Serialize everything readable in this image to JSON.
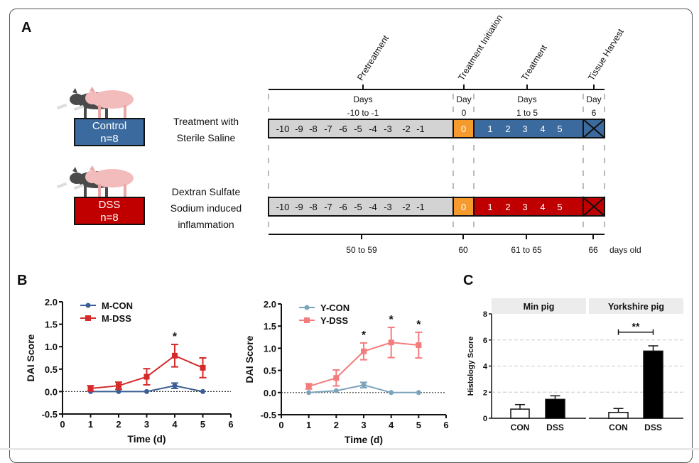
{
  "panels": {
    "a": {
      "label": "A"
    },
    "b": {
      "label": "B"
    },
    "c": {
      "label": "C"
    }
  },
  "groups": [
    {
      "name": "Control",
      "n": "n=8",
      "desc": [
        "Treatment with",
        "Sterile Saline"
      ],
      "color": "#3b6a9f"
    },
    {
      "name": "DSS",
      "n": "n=8",
      "desc": [
        "Dextran Sulfate",
        "Sodium induced",
        "inflammation"
      ],
      "color": "#c00000"
    }
  ],
  "timeline": {
    "phases": [
      "Pretreatment",
      "Treatment Initiation",
      "Treatment",
      "Tissue Harvest"
    ],
    "headers": [
      {
        "title": "Days",
        "range": "-10 to -1"
      },
      {
        "title": "Day",
        "range": "0"
      },
      {
        "title": "Days",
        "range": "1 to 5"
      },
      {
        "title": "Day",
        "range": "6"
      }
    ],
    "pre_days": [
      "-10",
      "-9",
      "-8",
      "-7",
      "-6",
      "-5",
      "-4",
      "-3",
      "-2",
      "-1"
    ],
    "init_day": "0",
    "treat_days": [
      "1",
      "2",
      "3",
      "4",
      "5"
    ],
    "ages": [
      "50 to 59",
      "60",
      "61 to 65",
      "66"
    ],
    "age_unit": "days old",
    "colors": {
      "pre": "#d3d3d3",
      "init": "#f59a2c",
      "harvest_x": "#111111"
    }
  },
  "chart_data": [
    {
      "type": "line",
      "title": "",
      "xlabel": "Time (d)",
      "ylabel": "DAI  Score",
      "xlim": [
        0,
        6
      ],
      "ylim": [
        -0.5,
        2.0
      ],
      "xticks": [
        "0",
        "1",
        "2",
        "3",
        "4",
        "5",
        "6"
      ],
      "yticks": [
        "-0.5",
        "0.0",
        "0.5",
        "1.0",
        "1.5",
        "2.0"
      ],
      "legend": "top-left",
      "reference_line": 0,
      "series": [
        {
          "name": "M-CON",
          "color": "#3b5f94",
          "marker": "circle",
          "x": [
            1,
            2,
            3,
            4,
            5
          ],
          "y": [
            0,
            0,
            0,
            0.13,
            0
          ],
          "err": [
            0,
            0,
            0,
            0.06,
            0
          ]
        },
        {
          "name": "M-DSS",
          "color": "#d42a2a",
          "marker": "square",
          "x": [
            1,
            2,
            3,
            4,
            5
          ],
          "y": [
            0.07,
            0.13,
            0.33,
            0.8,
            0.53
          ],
          "err": [
            0.06,
            0.08,
            0.18,
            0.25,
            0.22
          ]
        }
      ],
      "annotations": [
        {
          "x": 4,
          "text": "*"
        }
      ]
    },
    {
      "type": "line",
      "title": "",
      "xlabel": "Time (d)",
      "ylabel": "DAI  Score",
      "xlim": [
        0,
        6
      ],
      "ylim": [
        -0.5,
        2.0
      ],
      "xticks": [
        "0",
        "1",
        "2",
        "3",
        "4",
        "5",
        "6"
      ],
      "yticks": [
        "-0.5",
        "0.0",
        "0.5",
        "1.0",
        "1.5",
        "2.0"
      ],
      "legend": "top-left",
      "reference_line": 0,
      "series": [
        {
          "name": "Y-CON",
          "color": "#7ba3ba",
          "marker": "circle",
          "x": [
            1,
            2,
            3,
            4,
            5
          ],
          "y": [
            0,
            0.04,
            0.17,
            0,
            0
          ],
          "err": [
            0,
            0,
            0.06,
            0,
            0
          ]
        },
        {
          "name": "Y-DSS",
          "color": "#f47c7c",
          "marker": "square",
          "x": [
            1,
            2,
            3,
            4,
            5
          ],
          "y": [
            0.14,
            0.33,
            0.93,
            1.13,
            1.07
          ],
          "err": [
            0.06,
            0.18,
            0.19,
            0.34,
            0.29
          ]
        }
      ],
      "annotations": [
        {
          "x": 3,
          "text": "*"
        },
        {
          "x": 4,
          "text": "*"
        },
        {
          "x": 5,
          "text": "*"
        }
      ]
    },
    {
      "type": "bar",
      "title": "",
      "xlabel": "",
      "ylabel": "Histology Score",
      "ylim": [
        0,
        8
      ],
      "yticks": [
        "0",
        "2",
        "4",
        "6",
        "8"
      ],
      "grid": true,
      "facets": [
        {
          "name": "Min pig",
          "categories": [
            "CON",
            "DSS"
          ],
          "values": [
            0.7,
            1.45
          ],
          "err": [
            0.35,
            0.27
          ],
          "fills": [
            "#ffffff",
            "#000000"
          ]
        },
        {
          "name": "Yorkshire pig",
          "categories": [
            "CON",
            "DSS"
          ],
          "values": [
            0.45,
            5.15
          ],
          "err": [
            0.3,
            0.4
          ],
          "fills": [
            "#ffffff",
            "#000000"
          ],
          "significance": "**"
        }
      ]
    }
  ]
}
